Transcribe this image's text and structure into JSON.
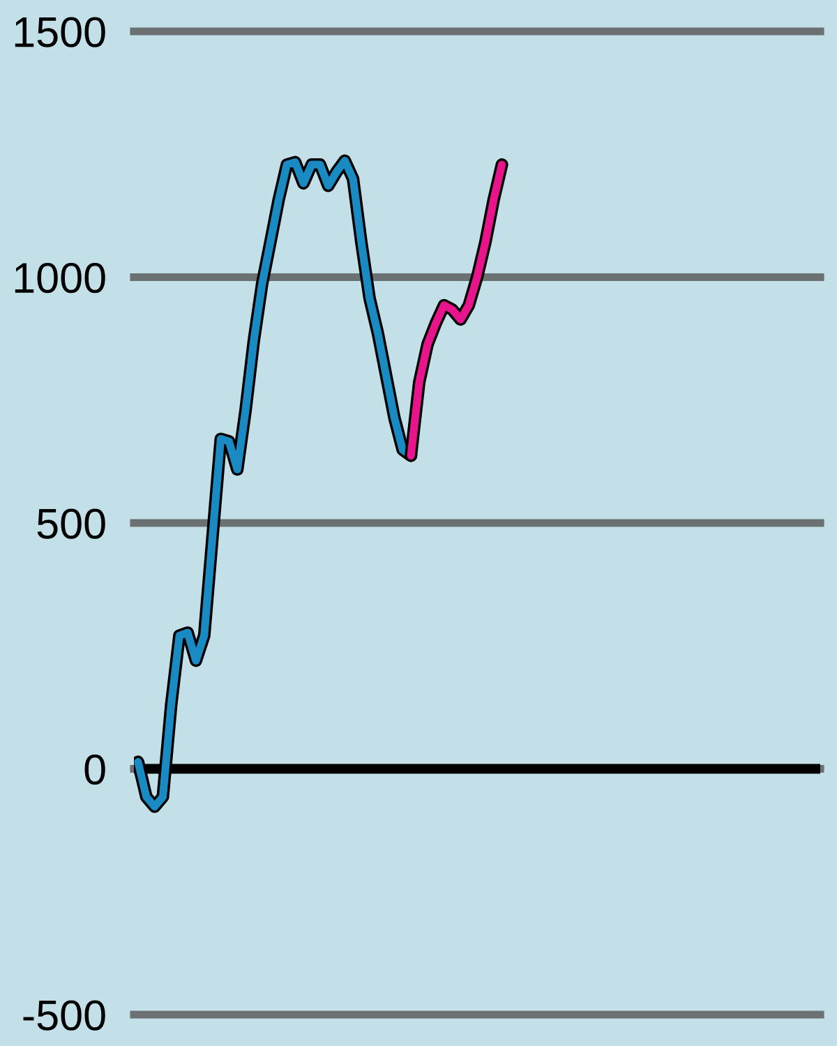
{
  "chart_data": {
    "type": "line",
    "categories": [
      null,
      null,
      null,
      null,
      null,
      null,
      null,
      null,
      null,
      null,
      null,
      null,
      null,
      null,
      null,
      null,
      null,
      null,
      null,
      null,
      null,
      null,
      null,
      null,
      null,
      null,
      null,
      null,
      null,
      null,
      null,
      null,
      null,
      null,
      null,
      null,
      null,
      null,
      null,
      null,
      null,
      null,
      null,
      null,
      null,
      null,
      null,
      null,
      null,
      null,
      null,
      null,
      null,
      null,
      null,
      null,
      null,
      null,
      null,
      null,
      null,
      null,
      null,
      null,
      null,
      null,
      null,
      null,
      null,
      null,
      null,
      null,
      null,
      null,
      null,
      null,
      null,
      null,
      null,
      null,
      null,
      null,
      null
    ],
    "series": [
      {
        "color": "#1a8ac2",
        "values": [
          14,
          -57,
          -77,
          -57,
          129,
          271,
          277,
          220,
          271,
          471,
          671,
          666,
          609,
          729,
          871,
          986,
          1071,
          1157,
          1229,
          1234,
          1191,
          1229,
          1229,
          1186,
          1214,
          1237,
          1200,
          1071,
          957,
          886,
          800,
          714,
          649,
          637,
          null,
          null,
          null,
          null,
          null,
          null,
          null,
          null,
          null,
          null,
          null,
          null,
          null,
          null,
          null,
          null,
          null,
          null,
          null,
          null,
          null,
          null,
          null,
          null,
          null,
          null,
          null,
          null,
          null,
          null,
          null,
          null,
          null,
          null,
          null,
          null,
          null,
          null,
          null,
          null,
          null,
          null,
          null,
          null,
          null,
          null,
          null,
          null,
          null
        ]
      },
      {
        "color": "#e8148c",
        "values": [
          null,
          null,
          null,
          null,
          null,
          null,
          null,
          null,
          null,
          null,
          null,
          null,
          null,
          null,
          null,
          null,
          null,
          null,
          null,
          null,
          null,
          null,
          null,
          null,
          null,
          null,
          null,
          null,
          null,
          null,
          null,
          null,
          null,
          637,
          786,
          863,
          906,
          943,
          934,
          914,
          943,
          1000,
          1071,
          1157,
          1229,
          null,
          null,
          null,
          null,
          null,
          null,
          null,
          null,
          null,
          null,
          null,
          null,
          null,
          null,
          null,
          null,
          null,
          null,
          null,
          null,
          null,
          null,
          null,
          null,
          null,
          null,
          null,
          null,
          null,
          null,
          null,
          null,
          null,
          null,
          null,
          null,
          null,
          null
        ]
      }
    ],
    "ylim": [
      -500,
      1500
    ],
    "yticks": [
      -500,
      0,
      500,
      1000,
      1500
    ],
    "grid": "y",
    "tick_labels": "y",
    "ref_lines": [
      {
        "axis": "y",
        "value": 0,
        "color": "#000000"
      }
    ]
  }
}
